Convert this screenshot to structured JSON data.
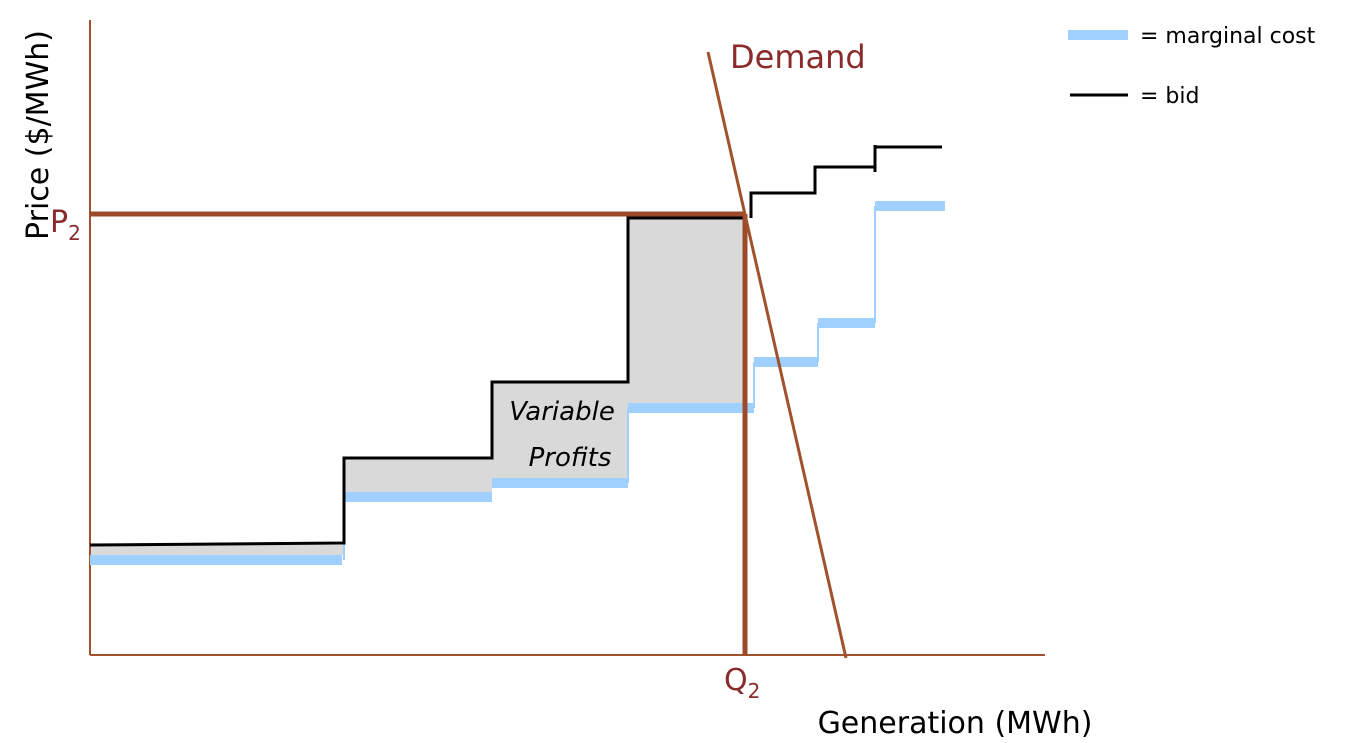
{
  "axes": {
    "y_label": "Price ($/MWh)",
    "x_label": "Generation (MWh)"
  },
  "demand_label": "Demand",
  "price_label": {
    "text": "P",
    "subscript": "2"
  },
  "quantity_label": {
    "text": "Q",
    "subscript": "2"
  },
  "area_label": [
    "Variable",
    "Profits"
  ],
  "legend": [
    {
      "label": "= marginal cost"
    },
    {
      "label": "= bid"
    }
  ]
}
